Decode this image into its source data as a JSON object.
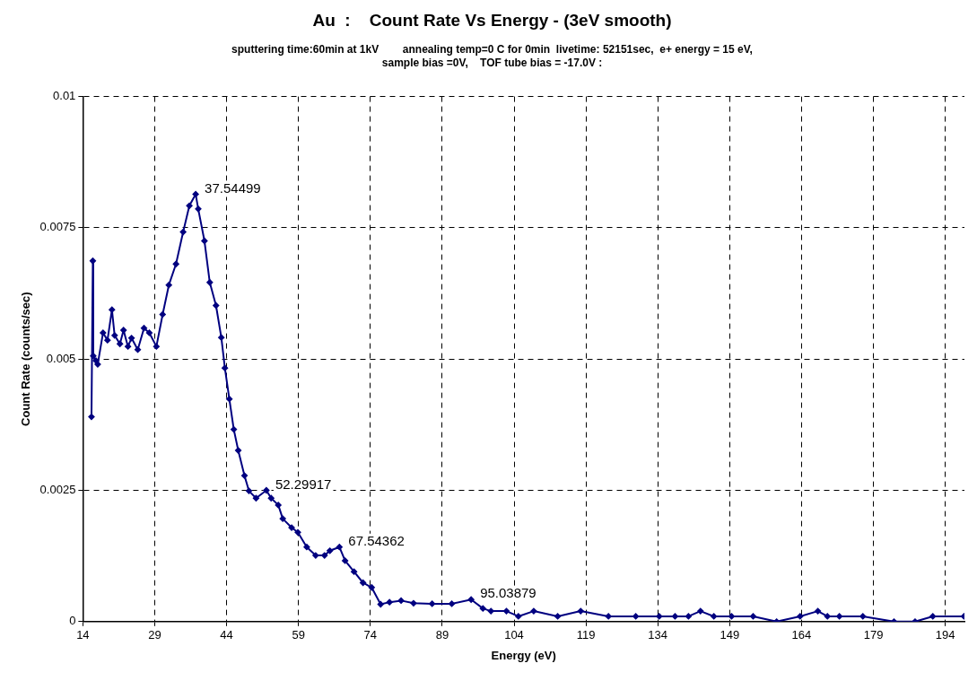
{
  "chart_data": {
    "type": "line",
    "title": "Au  :    Count Rate Vs Energy - (3eV smooth)",
    "subtitle": "sputtering time:60min at 1kV        annealing temp=0 C for 0min  livetime: 52151sec,  e+ energy = 15 eV,\nsample bias =0V,    TOF tube bias = -17.0V :",
    "xlabel": "Energy (eV)",
    "ylabel": "Count Rate (counts/sec)",
    "x": [
      15.8,
      16.08,
      16.17,
      16.73,
      17.1,
      18.21,
      19.14,
      20.07,
      20.63,
      21.74,
      22.49,
      23.41,
      24.16,
      25.46,
      26.76,
      27.87,
      29.35,
      30.65,
      31.95,
      33.44,
      34.93,
      36.23,
      37.54499,
      38.08,
      39.38,
      40.49,
      41.79,
      42.9,
      43.64,
      44.57,
      45.5,
      46.43,
      47.73,
      48.66,
      50.15,
      52.29917,
      53.3,
      54.79,
      55.72,
      57.57,
      58.87,
      60.73,
      62.59,
      64.44,
      65.56,
      67.54362,
      68.73,
      70.6,
      72.47,
      74.28,
      76.15,
      78.0,
      80.42,
      83.02,
      86.9,
      91.0,
      95.03879,
      97.5,
      99.17,
      102.4,
      104.9,
      108.1,
      113.1,
      117.9,
      123.7,
      129.4,
      134.3,
      137.6,
      140.4,
      142.9,
      145.7,
      149.4,
      153.9,
      158.8,
      163.7,
      167.4,
      169.4,
      171.9,
      176.8,
      183.3,
      187.7,
      191.4,
      197.9
    ],
    "series": [
      {
        "color": "#000080",
        "values": [
          0.0039,
          0.00687,
          0.00506,
          0.00497,
          0.0049,
          0.0055,
          0.00536,
          0.00594,
          0.00545,
          0.00529,
          0.00555,
          0.00524,
          0.0054,
          0.00518,
          0.00559,
          0.0055,
          0.00524,
          0.00585,
          0.00641,
          0.00681,
          0.00742,
          0.00792,
          0.00814,
          0.00786,
          0.00725,
          0.00646,
          0.00602,
          0.00541,
          0.00483,
          0.00424,
          0.00366,
          0.00326,
          0.00278,
          0.00249,
          0.00235,
          0.0025,
          0.00235,
          0.00222,
          0.00196,
          0.00179,
          0.0017,
          0.00142,
          0.00126,
          0.00126,
          0.00135,
          0.00142,
          0.00116,
          0.00095,
          0.00074,
          0.00065,
          0.00033,
          0.00037,
          0.0004,
          0.00035,
          0.00034,
          0.00034,
          0.00042,
          0.00025,
          0.0002,
          0.0002,
          0.0001,
          0.0002,
          0.0001,
          0.0002,
          0.0001,
          0.0001,
          0.0001,
          0.0001,
          0.0001,
          0.0002,
          0.0001,
          0.0001,
          0.0001,
          0,
          0.0001,
          0.0002,
          0.0001,
          0.0001,
          0.0001,
          0,
          0,
          0.0001,
          0.0001
        ]
      }
    ],
    "annotations": [
      {
        "text": "37.54499",
        "x": 37.54499,
        "y": 0.00814
      },
      {
        "text": "52.29917",
        "x": 52.29917,
        "y": 0.0025
      },
      {
        "text": "67.54362",
        "x": 67.54362,
        "y": 0.00142
      },
      {
        "text": "95.03879",
        "x": 95.03879,
        "y": 0.00042
      }
    ],
    "xlim": [
      14,
      198
    ],
    "xticks": [
      14,
      29,
      44,
      59,
      74,
      89,
      104,
      119,
      134,
      149,
      164,
      179,
      194
    ],
    "ylim": [
      0,
      0.01
    ],
    "yticks": [
      0,
      0.0025,
      0.005,
      0.0075,
      0.01
    ],
    "grid": true,
    "legend": false,
    "marker": "diamond",
    "line_style": "solid"
  }
}
